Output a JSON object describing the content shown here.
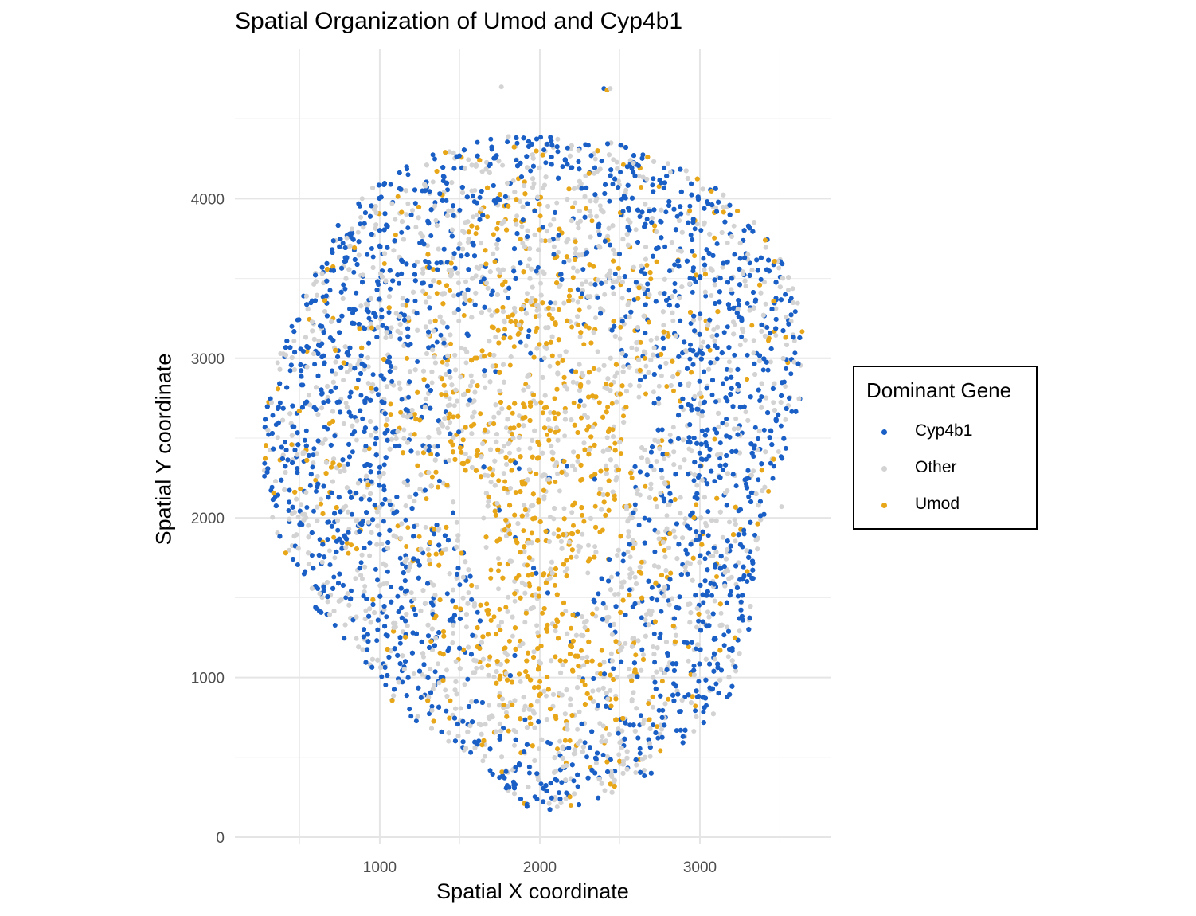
{
  "chart_data": {
    "type": "scatter",
    "title": "Spatial Organization of Umod and Cyp4b1",
    "xlabel": "Spatial X coordinate",
    "ylabel": "Spatial Y coordinate",
    "xlim": [
      95,
      3816
    ],
    "ylim": [
      -45,
      4935
    ],
    "x_ticks": [
      1000,
      2000,
      3000
    ],
    "y_ticks": [
      0,
      1000,
      2000,
      3000,
      4000
    ],
    "x_tick_labels": [
      "1000",
      "2000",
      "3000"
    ],
    "y_tick_labels": [
      "0",
      "1000",
      "2000",
      "3000",
      "4000"
    ],
    "grid": true,
    "legend": {
      "title": "Dominant Gene",
      "placement": "right"
    },
    "series": [
      {
        "name": "Cyp4b1",
        "color": "#1a5fc6"
      },
      {
        "name": "Other",
        "color": "#d3d3d3"
      },
      {
        "name": "Umod",
        "color": "#e8a619"
      }
    ]
  }
}
